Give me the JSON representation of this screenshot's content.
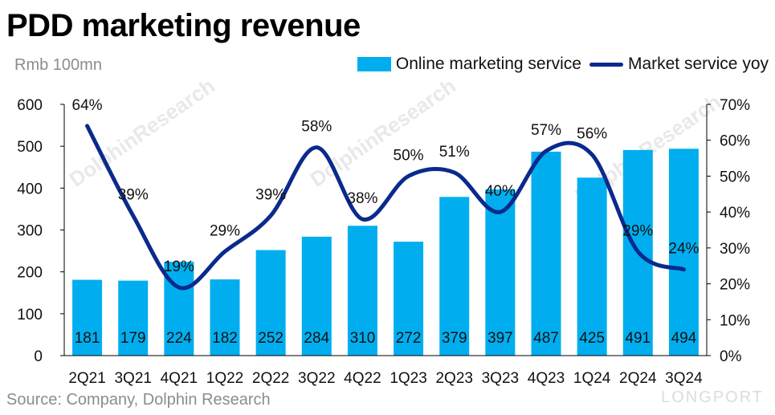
{
  "header": {
    "title": "PDD marketing revenue",
    "unit": "Rmb 100mn"
  },
  "footer": {
    "source": "Source: Company, Dolphin Research",
    "brand": "LONGPORT"
  },
  "watermark": {
    "text_1": "DolphinResearch",
    "text_2": "DolphinResearch",
    "text_3": "DolphinResearch"
  },
  "colors": {
    "bar": "#00aeef",
    "line": "#0a2a8c",
    "axis": "#000000"
  },
  "chart_data": {
    "type": "bar",
    "categories": [
      "2Q21",
      "3Q21",
      "4Q21",
      "1Q22",
      "2Q22",
      "3Q22",
      "4Q22",
      "1Q23",
      "2Q23",
      "3Q23",
      "4Q23",
      "1Q24",
      "2Q24",
      "3Q24"
    ],
    "series": [
      {
        "name": "Online marketing service",
        "type": "bar",
        "axis": "left",
        "values": [
          181,
          179,
          224,
          182,
          252,
          284,
          310,
          272,
          379,
          397,
          487,
          425,
          491,
          494
        ],
        "labels": [
          "181",
          "179",
          "224",
          "182",
          "252",
          "284",
          "310",
          "272",
          "379",
          "397",
          "487",
          "425",
          "491",
          "494"
        ]
      },
      {
        "name": "Market service yoy",
        "type": "line",
        "axis": "right",
        "smooth": true,
        "values": [
          64,
          39,
          19,
          29,
          39,
          58,
          38,
          50,
          51,
          40,
          57,
          56,
          29,
          24
        ],
        "labels": [
          "64%",
          "39%",
          "19%",
          "29%",
          "39%",
          "58%",
          "38%",
          "50%",
          "51%",
          "40%",
          "57%",
          "56%",
          "29%",
          "24%"
        ]
      }
    ],
    "y_left": {
      "min": 0,
      "max": 600,
      "ticks": [
        "0",
        "100",
        "200",
        "300",
        "400",
        "500",
        "600"
      ]
    },
    "y_right": {
      "min": 0,
      "max": 70,
      "ticks": [
        "0%",
        "10%",
        "20%",
        "30%",
        "40%",
        "50%",
        "60%",
        "70%"
      ]
    },
    "legend": "top-right",
    "grid": false
  }
}
